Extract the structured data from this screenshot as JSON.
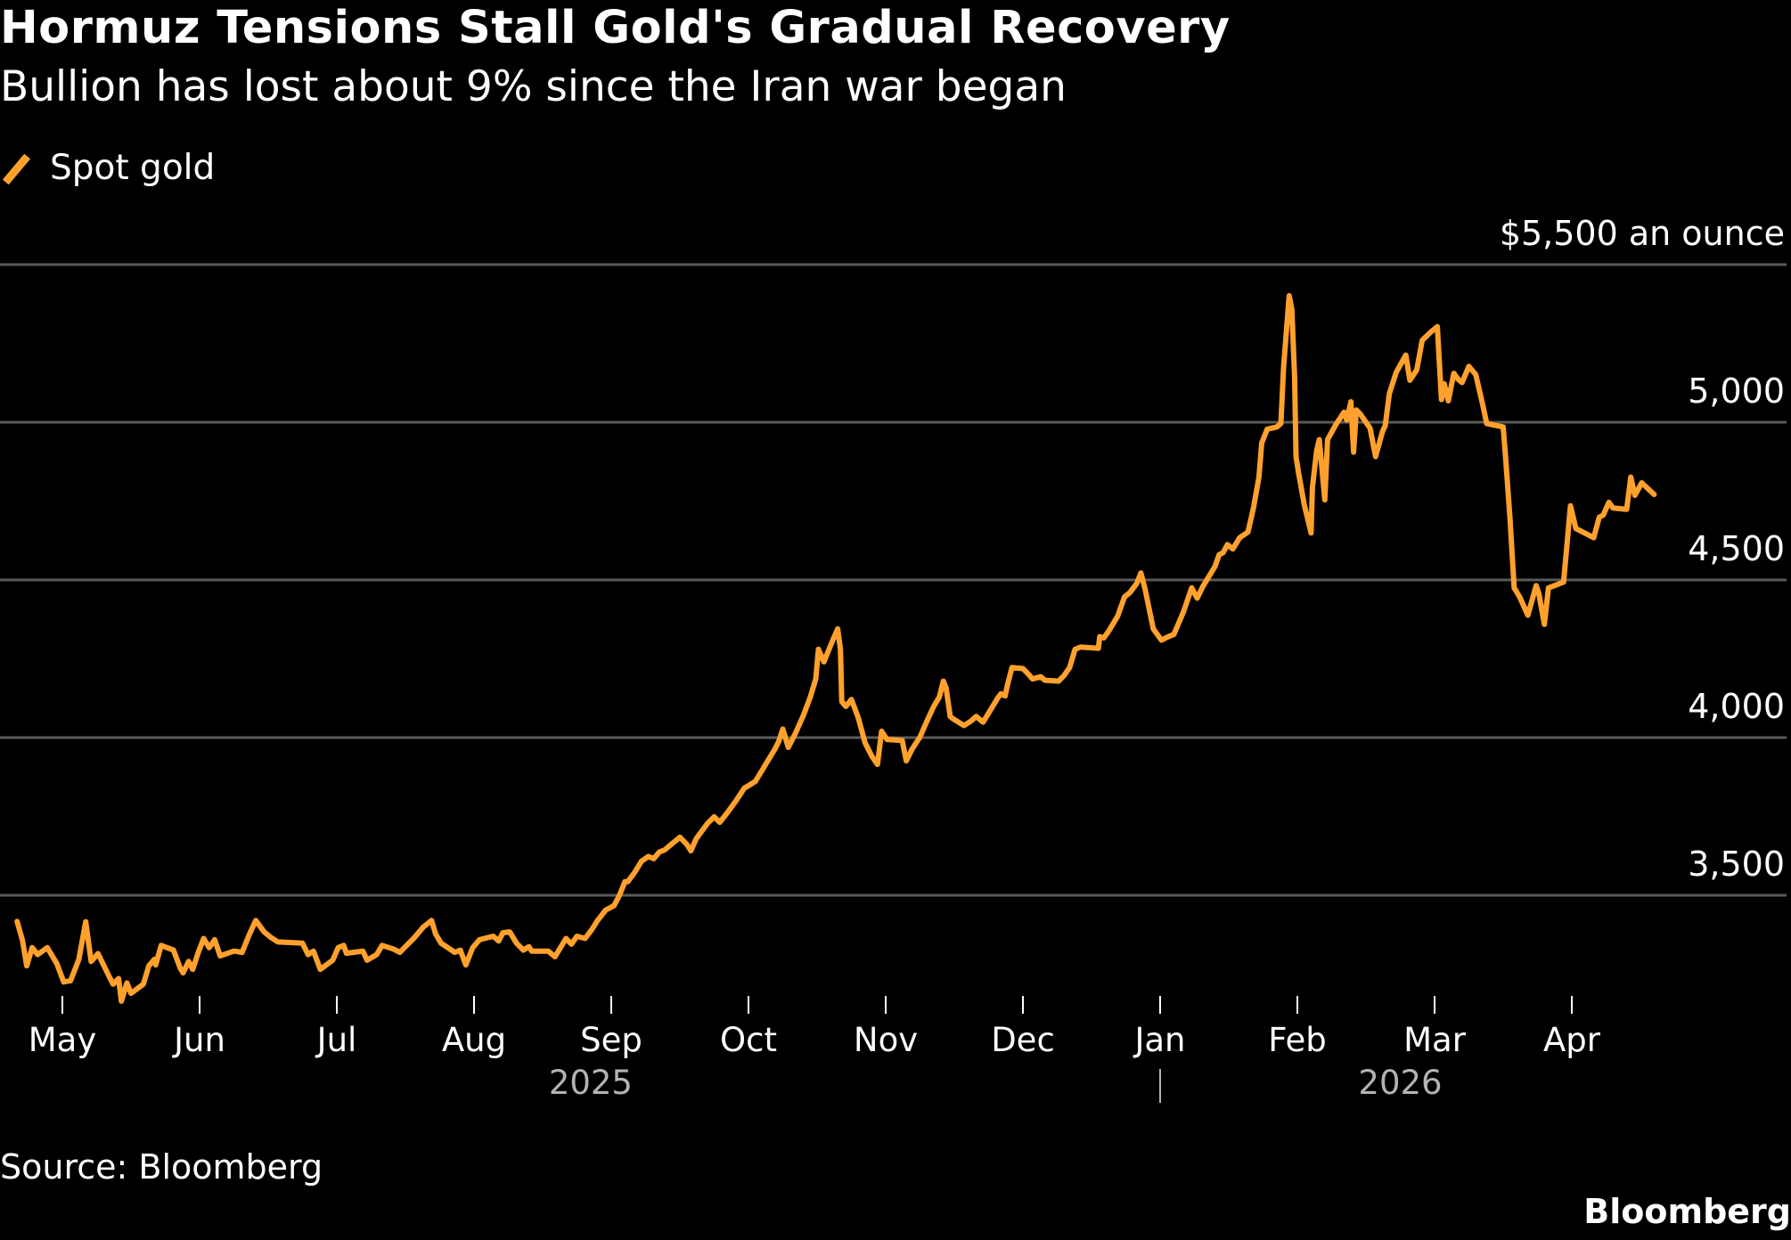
{
  "header": {
    "title": "Hormuz Tensions Stall Gold's Gradual Recovery",
    "subtitle": "Bullion has lost about 9% since the Iran war began"
  },
  "legend": {
    "label": "Spot gold",
    "icon": "diagonal-line-swatch",
    "color": "#FFA12C"
  },
  "footer": {
    "source": "Source: Bloomberg",
    "brand": "Bloomberg"
  },
  "colors": {
    "background": "#000000",
    "line": "#FFA12C",
    "grid": "#5a5a5a",
    "text": "#ffffff",
    "year_text": "#b3b3b3"
  },
  "chart_data": {
    "type": "line",
    "title": "Hormuz Tensions Stall Gold's Gradual Recovery",
    "subtitle": "Bullion has lost about 9% since the Iran war began",
    "xlabel": "",
    "ylabel": "$ an ounce",
    "x_unit": "months since May 1, 2025",
    "xlim": [
      -0.33,
      11.6
    ],
    "ylim": [
      3100,
      5500
    ],
    "yticks": [
      3500,
      4000,
      4500,
      5000,
      5500
    ],
    "ytick_labels": [
      "3,500",
      "4,000",
      "4,500",
      "5,000",
      "$5,500 an ounce"
    ],
    "xticks": [
      0,
      1,
      2,
      3,
      4,
      5,
      6,
      7,
      8,
      9,
      10,
      11
    ],
    "xtick_labels": [
      "May",
      "Jun",
      "Jul",
      "Aug",
      "Sep",
      "Oct",
      "Nov",
      "Dec",
      "Jan",
      "Feb",
      "Mar",
      "Apr"
    ],
    "year_labels": [
      {
        "label": "2025",
        "at": 3.85
      },
      {
        "label": "2026",
        "at": 9.75
      }
    ],
    "year_separator_at": 8,
    "grid": true,
    "legend": "top-left",
    "series": [
      {
        "name": "Spot gold",
        "points": [
          [
            -0.33,
            3417
          ],
          [
            -0.29,
            3356
          ],
          [
            -0.26,
            3276
          ],
          [
            -0.22,
            3334
          ],
          [
            -0.18,
            3312
          ],
          [
            -0.11,
            3334
          ],
          [
            -0.04,
            3283
          ],
          [
            0.01,
            3225
          ],
          [
            0.06,
            3229
          ],
          [
            0.12,
            3297
          ],
          [
            0.17,
            3416
          ],
          [
            0.21,
            3290
          ],
          [
            0.26,
            3315
          ],
          [
            0.34,
            3243
          ],
          [
            0.37,
            3218
          ],
          [
            0.41,
            3236
          ],
          [
            0.43,
            3164
          ],
          [
            0.47,
            3222
          ],
          [
            0.5,
            3189
          ],
          [
            0.59,
            3218
          ],
          [
            0.63,
            3276
          ],
          [
            0.67,
            3297
          ],
          [
            0.68,
            3279
          ],
          [
            0.72,
            3341
          ],
          [
            0.81,
            3326
          ],
          [
            0.86,
            3268
          ],
          [
            0.88,
            3254
          ],
          [
            0.92,
            3290
          ],
          [
            0.95,
            3265
          ],
          [
            0.99,
            3319
          ],
          [
            1.03,
            3363
          ],
          [
            1.07,
            3334
          ],
          [
            1.11,
            3359
          ],
          [
            1.15,
            3308
          ],
          [
            1.25,
            3323
          ],
          [
            1.31,
            3319
          ],
          [
            1.36,
            3373
          ],
          [
            1.41,
            3420
          ],
          [
            1.47,
            3384
          ],
          [
            1.52,
            3366
          ],
          [
            1.57,
            3352
          ],
          [
            1.75,
            3348
          ],
          [
            1.79,
            3312
          ],
          [
            1.83,
            3323
          ],
          [
            1.88,
            3265
          ],
          [
            1.97,
            3294
          ],
          [
            2.01,
            3334
          ],
          [
            2.05,
            3341
          ],
          [
            2.07,
            3316
          ],
          [
            2.19,
            3323
          ],
          [
            2.22,
            3294
          ],
          [
            2.29,
            3312
          ],
          [
            2.33,
            3341
          ],
          [
            2.41,
            3330
          ],
          [
            2.46,
            3319
          ],
          [
            2.5,
            3337
          ],
          [
            2.56,
            3363
          ],
          [
            2.63,
            3399
          ],
          [
            2.69,
            3420
          ],
          [
            2.72,
            3377
          ],
          [
            2.76,
            3348
          ],
          [
            2.86,
            3319
          ],
          [
            2.9,
            3326
          ],
          [
            2.94,
            3279
          ],
          [
            2.99,
            3334
          ],
          [
            3.04,
            3359
          ],
          [
            3.14,
            3370
          ],
          [
            3.18,
            3355
          ],
          [
            3.21,
            3381
          ],
          [
            3.26,
            3384
          ],
          [
            3.31,
            3348
          ],
          [
            3.36,
            3326
          ],
          [
            3.4,
            3337
          ],
          [
            3.42,
            3323
          ],
          [
            3.54,
            3323
          ],
          [
            3.59,
            3305
          ],
          [
            3.63,
            3334
          ],
          [
            3.67,
            3363
          ],
          [
            3.71,
            3345
          ],
          [
            3.75,
            3370
          ],
          [
            3.81,
            3363
          ],
          [
            3.86,
            3392
          ],
          [
            3.9,
            3420
          ],
          [
            3.96,
            3453
          ],
          [
            4.02,
            3467
          ],
          [
            4.06,
            3500
          ],
          [
            4.1,
            3543
          ],
          [
            4.12,
            3543
          ],
          [
            4.17,
            3572
          ],
          [
            4.22,
            3608
          ],
          [
            4.27,
            3623
          ],
          [
            4.31,
            3616
          ],
          [
            4.35,
            3637
          ],
          [
            4.39,
            3644
          ],
          [
            4.42,
            3655
          ],
          [
            4.5,
            3684
          ],
          [
            4.55,
            3662
          ],
          [
            4.58,
            3641
          ],
          [
            4.62,
            3680
          ],
          [
            4.7,
            3727
          ],
          [
            4.75,
            3749
          ],
          [
            4.79,
            3731
          ],
          [
            4.85,
            3764
          ],
          [
            4.91,
            3800
          ],
          [
            4.97,
            3840
          ],
          [
            5.01,
            3850
          ],
          [
            5.05,
            3861
          ],
          [
            5.1,
            3897
          ],
          [
            5.14,
            3926
          ],
          [
            5.19,
            3962
          ],
          [
            5.22,
            3987
          ],
          [
            5.25,
            4027
          ],
          [
            5.29,
            3969
          ],
          [
            5.34,
            4012
          ],
          [
            5.4,
            4070
          ],
          [
            5.45,
            4128
          ],
          [
            5.49,
            4186
          ],
          [
            5.51,
            4280
          ],
          [
            5.55,
            4240
          ],
          [
            5.6,
            4294
          ],
          [
            5.65,
            4345
          ],
          [
            5.67,
            4280
          ],
          [
            5.68,
            4114
          ],
          [
            5.71,
            4099
          ],
          [
            5.75,
            4121
          ],
          [
            5.8,
            4063
          ],
          [
            5.85,
            3983
          ],
          [
            5.9,
            3940
          ],
          [
            5.94,
            3915
          ],
          [
            5.97,
            4020
          ],
          [
            6.01,
            3994
          ],
          [
            6.12,
            3991
          ],
          [
            6.15,
            3926
          ],
          [
            6.19,
            3962
          ],
          [
            6.25,
            4002
          ],
          [
            6.3,
            4052
          ],
          [
            6.35,
            4099
          ],
          [
            6.39,
            4128
          ],
          [
            6.42,
            4179
          ],
          [
            6.44,
            4157
          ],
          [
            6.47,
            4067
          ],
          [
            6.49,
            4060
          ],
          [
            6.57,
            4038
          ],
          [
            6.62,
            4052
          ],
          [
            6.66,
            4067
          ],
          [
            6.71,
            4049
          ],
          [
            6.77,
            4092
          ],
          [
            6.82,
            4128
          ],
          [
            6.84,
            4139
          ],
          [
            6.87,
            4132
          ],
          [
            6.89,
            4172
          ],
          [
            6.92,
            4222
          ],
          [
            7.0,
            4219
          ],
          [
            7.04,
            4201
          ],
          [
            7.07,
            4186
          ],
          [
            7.13,
            4193
          ],
          [
            7.16,
            4182
          ],
          [
            7.26,
            4179
          ],
          [
            7.3,
            4197
          ],
          [
            7.34,
            4222
          ],
          [
            7.38,
            4280
          ],
          [
            7.42,
            4287
          ],
          [
            7.55,
            4283
          ],
          [
            7.56,
            4320
          ],
          [
            7.59,
            4316
          ],
          [
            7.63,
            4341
          ],
          [
            7.69,
            4385
          ],
          [
            7.74,
            4446
          ],
          [
            7.78,
            4460
          ],
          [
            7.83,
            4489
          ],
          [
            7.86,
            4522
          ],
          [
            7.89,
            4471
          ],
          [
            7.95,
            4345
          ],
          [
            8.01,
            4309
          ],
          [
            8.06,
            4320
          ],
          [
            8.1,
            4327
          ],
          [
            8.17,
            4399
          ],
          [
            8.23,
            4475
          ],
          [
            8.27,
            4442
          ],
          [
            8.31,
            4478
          ],
          [
            8.4,
            4543
          ],
          [
            8.43,
            4580
          ],
          [
            8.46,
            4587
          ],
          [
            8.49,
            4612
          ],
          [
            8.53,
            4598
          ],
          [
            8.58,
            4634
          ],
          [
            8.64,
            4652
          ],
          [
            8.68,
            4728
          ],
          [
            8.72,
            4826
          ],
          [
            8.74,
            4934
          ],
          [
            8.78,
            4978
          ],
          [
            8.85,
            4985
          ],
          [
            8.88,
            4996
          ],
          [
            8.9,
            5177
          ],
          [
            8.94,
            5401
          ],
          [
            8.96,
            5358
          ],
          [
            8.98,
            5145
          ],
          [
            8.99,
            4891
          ],
          [
            9.01,
            4837
          ],
          [
            9.05,
            4739
          ],
          [
            9.1,
            4649
          ],
          [
            9.11,
            4793
          ],
          [
            9.14,
            4909
          ],
          [
            9.16,
            4945
          ],
          [
            9.2,
            4754
          ],
          [
            9.22,
            4945
          ],
          [
            9.28,
            4992
          ],
          [
            9.34,
            5032
          ],
          [
            9.36,
            5007
          ],
          [
            9.39,
            5065
          ],
          [
            9.41,
            4905
          ],
          [
            9.43,
            5039
          ],
          [
            9.46,
            5025
          ],
          [
            9.53,
            4981
          ],
          [
            9.57,
            4891
          ],
          [
            9.62,
            4970
          ],
          [
            9.64,
            4989
          ],
          [
            9.67,
            5090
          ],
          [
            9.72,
            5158
          ],
          [
            9.79,
            5213
          ],
          [
            9.82,
            5133
          ],
          [
            9.87,
            5166
          ],
          [
            9.91,
            5260
          ],
          [
            9.97,
            5285
          ],
          [
            10.02,
            5303
          ],
          [
            10.05,
            5072
          ],
          [
            10.07,
            5122
          ],
          [
            10.1,
            5068
          ],
          [
            10.14,
            5155
          ],
          [
            10.17,
            5137
          ],
          [
            10.2,
            5126
          ],
          [
            10.25,
            5177
          ],
          [
            10.3,
            5151
          ],
          [
            10.35,
            5057
          ],
          [
            10.38,
            4996
          ],
          [
            10.5,
            4985
          ],
          [
            10.52,
            4873
          ],
          [
            10.55,
            4692
          ],
          [
            10.58,
            4475
          ],
          [
            10.62,
            4446
          ],
          [
            10.68,
            4388
          ],
          [
            10.74,
            4482
          ],
          [
            10.76,
            4457
          ],
          [
            10.8,
            4359
          ],
          [
            10.83,
            4475
          ],
          [
            10.94,
            4493
          ],
          [
            10.96,
            4587
          ],
          [
            10.99,
            4735
          ],
          [
            11.03,
            4663
          ],
          [
            11.16,
            4634
          ],
          [
            11.2,
            4699
          ],
          [
            11.23,
            4706
          ],
          [
            11.27,
            4746
          ],
          [
            11.3,
            4728
          ],
          [
            11.4,
            4724
          ],
          [
            11.43,
            4826
          ],
          [
            11.46,
            4768
          ],
          [
            11.51,
            4808
          ],
          [
            11.6,
            4771
          ]
        ]
      }
    ]
  }
}
